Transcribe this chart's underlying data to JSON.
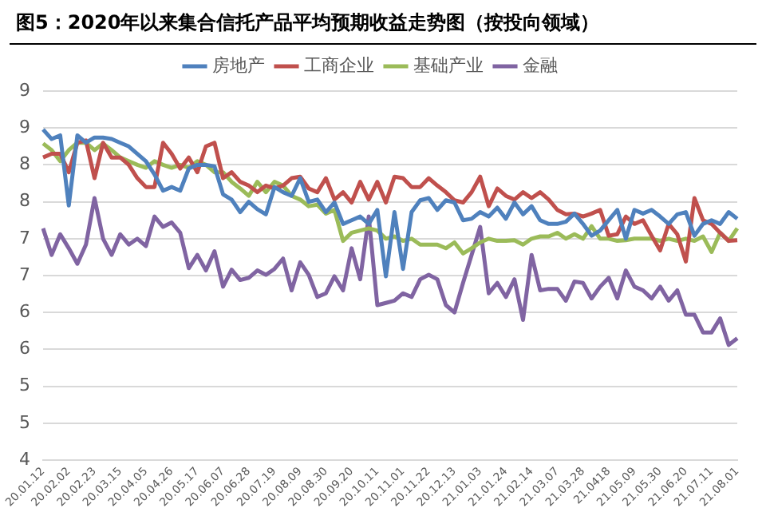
{
  "chart_data": {
    "type": "line",
    "title": "图5：2020年以来集合信托产品平均预期收益走势图（按投向领域）",
    "categories": [
      "20.01.12",
      null,
      null,
      "20.02.02",
      null,
      null,
      "20.02.23",
      null,
      null,
      "20.03.15",
      null,
      null,
      "20.04.05",
      null,
      null,
      "20.04.26",
      null,
      null,
      "20.05.17",
      null,
      null,
      "20.06.07",
      null,
      null,
      "20.06.28",
      null,
      null,
      "20.07.19",
      null,
      null,
      "20.08.09",
      null,
      null,
      "20.08.30",
      null,
      null,
      "20.09.20",
      null,
      null,
      "20.10.11",
      null,
      null,
      "20.11.01",
      null,
      null,
      "20.11.22",
      null,
      null,
      "20.12.13",
      null,
      null,
      "21.01.03",
      null,
      null,
      "21.01.24",
      null,
      null,
      "21.02.14",
      null,
      null,
      "21.03.07",
      null,
      null,
      "21.03.28",
      null,
      null,
      "21.0418",
      null,
      null,
      "21.05.09",
      null,
      null,
      "21.05.30",
      null,
      null,
      "21.06.20",
      null,
      null,
      "21.07.11",
      null,
      null,
      "21.08.01"
    ],
    "series": [
      {
        "name": "房地产",
        "color": "#4f81bd",
        "values": [
          8.48,
          8.35,
          8.4,
          7.45,
          8.4,
          8.3,
          8.37,
          8.37,
          8.35,
          8.3,
          8.25,
          8.15,
          8.05,
          7.87,
          7.65,
          7.7,
          7.65,
          7.95,
          8.0,
          8.0,
          7.98,
          7.6,
          7.53,
          7.36,
          7.5,
          7.4,
          7.33,
          7.7,
          7.63,
          7.58,
          7.82,
          7.5,
          7.53,
          7.36,
          7.49,
          7.2,
          7.25,
          7.3,
          7.2,
          7.39,
          6.49,
          7.36,
          6.59,
          7.36,
          7.52,
          7.55,
          7.39,
          7.52,
          7.49,
          7.25,
          7.27,
          7.36,
          7.3,
          7.42,
          7.27,
          7.49,
          7.33,
          7.44,
          7.25,
          7.2,
          7.2,
          7.23,
          7.34,
          7.2,
          7.04,
          7.11,
          7.25,
          7.39,
          7.0,
          7.39,
          7.34,
          7.39,
          7.3,
          7.2,
          7.33,
          7.36,
          7.04,
          7.2,
          7.25,
          7.2,
          7.36,
          7.27
        ]
      },
      {
        "name": "工商企业",
        "color": "#c0504d",
        "values": [
          8.1,
          8.15,
          8.15,
          7.9,
          8.3,
          8.33,
          7.82,
          8.3,
          8.1,
          8.1,
          8.0,
          7.82,
          7.7,
          7.7,
          8.3,
          8.15,
          7.95,
          8.1,
          7.9,
          8.25,
          8.3,
          7.82,
          7.9,
          7.77,
          7.72,
          7.63,
          7.72,
          7.68,
          7.72,
          7.82,
          7.84,
          7.68,
          7.63,
          7.82,
          7.53,
          7.63,
          7.49,
          7.77,
          7.53,
          7.77,
          7.49,
          7.84,
          7.82,
          7.7,
          7.7,
          7.82,
          7.72,
          7.63,
          7.52,
          7.49,
          7.63,
          7.84,
          7.44,
          7.68,
          7.58,
          7.53,
          7.63,
          7.55,
          7.63,
          7.53,
          7.39,
          7.33,
          7.34,
          7.3,
          7.34,
          7.39,
          7.04,
          7.06,
          7.3,
          7.2,
          7.25,
          7.04,
          6.84,
          7.2,
          7.06,
          6.69,
          7.55,
          7.25,
          7.2,
          7.08,
          6.97,
          6.98
        ]
      },
      {
        "name": "基础产业",
        "color": "#9bbb59",
        "values": [
          8.29,
          8.2,
          8.05,
          8.2,
          8.3,
          8.3,
          8.2,
          8.29,
          8.2,
          8.1,
          8.05,
          8.0,
          7.96,
          8.05,
          8.0,
          7.96,
          8.0,
          7.96,
          8.05,
          8.0,
          7.9,
          7.9,
          7.77,
          7.68,
          7.58,
          7.77,
          7.63,
          7.77,
          7.72,
          7.58,
          7.53,
          7.44,
          7.46,
          7.34,
          7.39,
          6.97,
          7.08,
          7.11,
          7.14,
          7.11,
          7.0,
          7.03,
          6.97,
          7.0,
          6.92,
          6.92,
          6.92,
          6.87,
          6.95,
          6.8,
          6.87,
          6.95,
          7.0,
          6.97,
          6.97,
          6.98,
          6.92,
          7.0,
          7.03,
          7.03,
          7.08,
          7.0,
          7.06,
          7.0,
          7.17,
          7.0,
          7.0,
          6.97,
          6.98,
          7.0,
          7.0,
          7.0,
          6.97,
          7.0,
          6.97,
          7.0,
          6.97,
          7.03,
          6.82,
          7.08,
          6.97,
          7.14
        ]
      },
      {
        "name": "金融",
        "color": "#8064a2",
        "values": [
          7.14,
          6.78,
          7.06,
          6.87,
          6.66,
          6.92,
          7.55,
          7.0,
          6.78,
          7.06,
          6.92,
          7.0,
          6.9,
          7.3,
          7.16,
          7.22,
          7.08,
          6.6,
          6.78,
          6.57,
          6.83,
          6.35,
          6.58,
          6.44,
          6.47,
          6.57,
          6.51,
          6.59,
          6.73,
          6.3,
          6.68,
          6.51,
          6.21,
          6.26,
          6.49,
          6.3,
          6.87,
          6.45,
          7.3,
          6.1,
          6.13,
          6.16,
          6.26,
          6.21,
          6.45,
          6.51,
          6.45,
          6.1,
          6.0,
          6.4,
          6.78,
          7.16,
          6.26,
          6.4,
          6.21,
          6.45,
          5.9,
          6.78,
          6.3,
          6.32,
          6.32,
          6.16,
          6.42,
          6.4,
          6.19,
          6.35,
          6.47,
          6.19,
          6.57,
          6.35,
          6.3,
          6.19,
          6.35,
          6.16,
          6.3,
          5.97,
          5.97,
          5.73,
          5.73,
          5.92,
          5.56,
          5.65
        ]
      }
    ],
    "ylim": [
      4,
      9
    ],
    "yticks": [
      {
        "value": 4,
        "label": "4"
      },
      {
        "value": 4.5,
        "label": "5"
      },
      {
        "value": 5,
        "label": "5"
      },
      {
        "value": 5.5,
        "label": "6"
      },
      {
        "value": 6,
        "label": "6"
      },
      {
        "value": 6.5,
        "label": "7"
      },
      {
        "value": 7,
        "label": "7"
      },
      {
        "value": 7.5,
        "label": "8"
      },
      {
        "value": 8,
        "label": "8"
      },
      {
        "value": 8.5,
        "label": "9"
      },
      {
        "value": 9,
        "label": "9"
      }
    ],
    "grid": "y",
    "legend": "top",
    "marker": "none",
    "line_style": "solid"
  }
}
